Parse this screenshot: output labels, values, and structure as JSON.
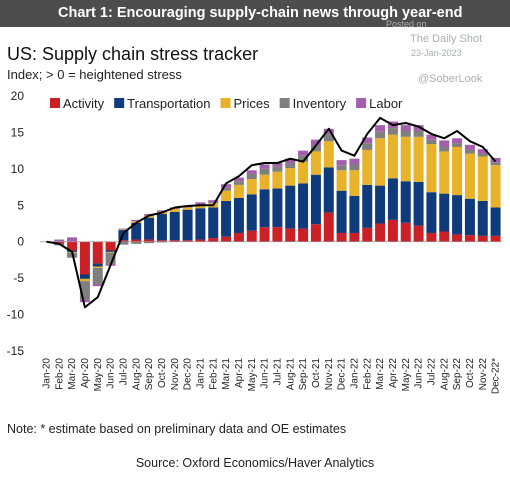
{
  "header": {
    "title": "Chart 1: Encouraging supply-chain news through year-end"
  },
  "watermark": {
    "posted": "Posted on",
    "source": "The Daily Shot",
    "date": "23-Jan-2023",
    "handle": "@SoberLook"
  },
  "note": "Note: * estimate based on preliminary data and OE estimates",
  "source": "Source: Oxford Economics/Haver Analytics",
  "chart_data": {
    "type": "bar",
    "stacked": true,
    "title": "US: Supply chain stress tracker",
    "subtitle": "Index; > 0 = heightened stress",
    "ylim": [
      -15,
      20
    ],
    "yticks": [
      -15,
      -10,
      -5,
      0,
      5,
      10,
      15,
      20
    ],
    "grid": false,
    "legend_position": "top",
    "categories": [
      "Jan-20",
      "Feb-20",
      "Mar-20",
      "Apr-20",
      "May-20",
      "Jun-20",
      "Jul-20",
      "Aug-20",
      "Sep-20",
      "Oct-20",
      "Nov-20",
      "Dec-20",
      "Jan-21",
      "Feb-21",
      "Mar-21",
      "Apr-21",
      "May-21",
      "Jun-21",
      "Jul-21",
      "Aug-21",
      "Sep-21",
      "Oct-21",
      "Nov-21",
      "Dec-21",
      "Jan-22",
      "Feb-22",
      "Mar-22",
      "Apr-22",
      "May-22",
      "Jun-22",
      "Jul-22",
      "Aug-22",
      "Sep-22",
      "Oct-22",
      "Nov-22",
      "Dec-22*"
    ],
    "xtick_labels": [
      "Jan-20",
      "Feb-20",
      "Mar-20",
      "Apr-20",
      "May-20",
      "Jun-20",
      "Jul-20",
      "Aug-20",
      "Sep-20",
      "Oct-20",
      "Nov-20",
      "Dec-20",
      "Jan-21",
      "Feb-21",
      "Mar-21",
      "Apr-21",
      "May-21",
      "Jun-21",
      "Jul-21",
      "Aug-21",
      "Sep-21",
      "Oct-21",
      "Nov-21",
      "Dec-21",
      "Jan-22",
      "Feb-22",
      "Mar-22",
      "Apr-22",
      "May-22",
      "Jun-22",
      "Jul-22",
      "Aug-22",
      "Sep-22",
      "Oct-22",
      "Nov-22",
      "Dec-22*"
    ],
    "series": [
      {
        "name": "Activity",
        "color": "#cc2027",
        "values": [
          0,
          -0.3,
          -1.2,
          -4.5,
          -3.0,
          -1.2,
          0.2,
          0.3,
          0.3,
          0.2,
          0.2,
          0.2,
          0.3,
          0.5,
          0.7,
          1.2,
          1.5,
          2.0,
          2.0,
          1.8,
          1.8,
          2.4,
          4.0,
          1.2,
          1.2,
          1.9,
          2.5,
          3.0,
          2.6,
          2.2,
          1.2,
          1.4,
          1.0,
          0.9,
          0.8,
          0.8
        ]
      },
      {
        "name": "Transportation",
        "color": "#0f3b7d",
        "values": [
          0,
          0,
          -0.2,
          -0.6,
          -0.4,
          -0.2,
          1.4,
          2.3,
          3.0,
          3.6,
          3.9,
          4.2,
          4.3,
          4.2,
          4.9,
          4.8,
          5.0,
          5.2,
          5.3,
          5.9,
          6.2,
          6.8,
          6.2,
          5.8,
          5.1,
          5.9,
          5.2,
          5.7,
          5.7,
          6.0,
          5.6,
          5.2,
          5.4,
          5.0,
          4.8,
          3.9
        ]
      },
      {
        "name": "Prices",
        "color": "#e8b32b",
        "values": [
          0,
          0,
          -0.1,
          -0.3,
          -0.2,
          -0.1,
          0.1,
          0.2,
          0.3,
          0.3,
          0.4,
          0.3,
          0.4,
          0.6,
          1.4,
          1.8,
          2.1,
          2.0,
          2.3,
          2.4,
          3.0,
          3.2,
          3.6,
          2.8,
          3.5,
          4.8,
          6.5,
          6.0,
          6.1,
          6.2,
          6.6,
          5.8,
          6.6,
          6.2,
          6.1,
          5.8
        ]
      },
      {
        "name": "Inventory",
        "color": "#7f7f7f",
        "values": [
          0,
          -0.2,
          -0.7,
          -2.5,
          -2.2,
          -1.5,
          -0.4,
          -0.3,
          -0.2,
          -0.1,
          0,
          0,
          0.1,
          0.1,
          0.4,
          0.5,
          0.7,
          0.8,
          0.7,
          0.7,
          0.8,
          0.8,
          0.9,
          0.7,
          0.8,
          0.9,
          0.9,
          0.9,
          0.8,
          0.8,
          0.6,
          0.6,
          0.5,
          0.5,
          0.4,
          0.4
        ]
      },
      {
        "name": "Labor",
        "color": "#a45fac",
        "values": [
          0,
          0.3,
          0.6,
          -0.4,
          -0.3,
          -0.3,
          0.1,
          0.2,
          0.2,
          0.2,
          0.2,
          0.2,
          0.3,
          0.3,
          0.5,
          0.5,
          0.5,
          0.6,
          0.5,
          0.6,
          0.7,
          0.8,
          0.8,
          0.7,
          0.8,
          0.8,
          0.9,
          0.9,
          0.8,
          0.8,
          0.7,
          0.9,
          0.7,
          0.7,
          0.6,
          0.6
        ]
      }
    ],
    "total": {
      "name": "Total",
      "color": "#000000",
      "values": [
        0,
        -0.3,
        -1.4,
        -9.0,
        -7.6,
        -3.2,
        1.2,
        2.6,
        3.6,
        4.0,
        4.7,
        4.9,
        5.0,
        5.0,
        8.0,
        9.0,
        10.5,
        10.8,
        10.8,
        11.4,
        11.0,
        13.2,
        15.5,
        12.5,
        11.8,
        14.8,
        17.0,
        16.0,
        16.3,
        15.8,
        14.8,
        14.2,
        15.2,
        13.8,
        13.0,
        11.0
      ]
    }
  }
}
